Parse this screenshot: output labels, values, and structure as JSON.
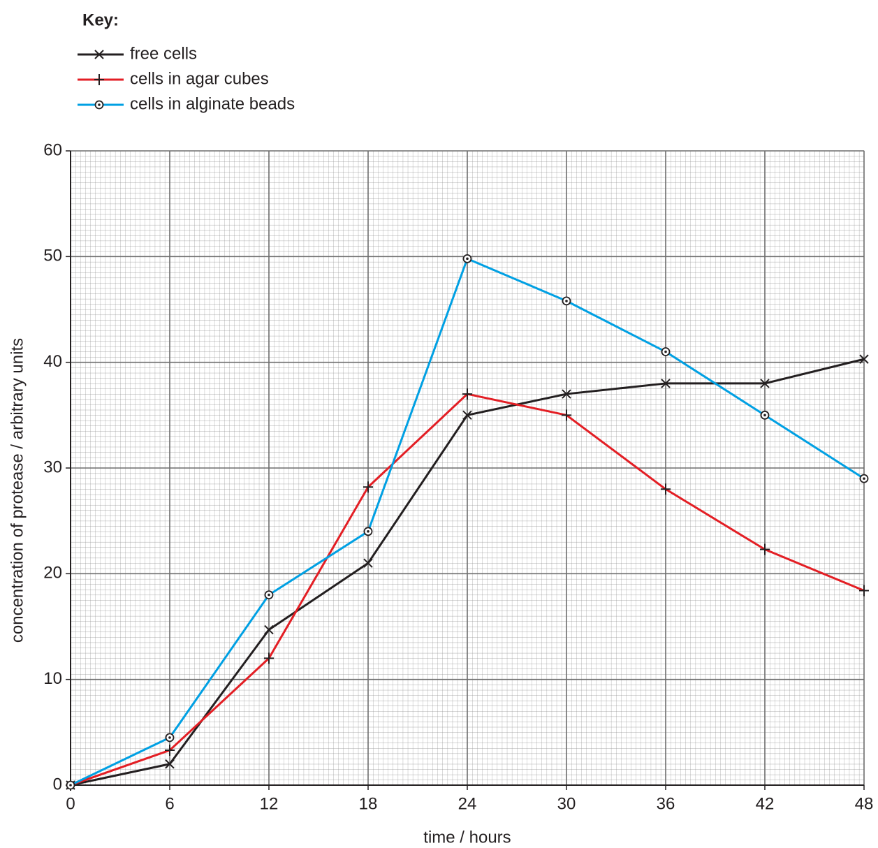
{
  "chart_data": {
    "type": "line",
    "legend_title": "Key:",
    "x_label": "time / hours",
    "y_label": "concentration of protease / arbitrary units",
    "x": [
      0,
      6,
      12,
      18,
      24,
      30,
      36,
      42,
      48
    ],
    "series": [
      {
        "name": "free cells",
        "color": "#231f20",
        "marker": "x",
        "values": [
          0,
          2,
          14.7,
          21,
          35,
          37,
          38,
          38,
          40.3
        ]
      },
      {
        "name": "cells in agar cubes",
        "color": "#e31e24",
        "marker": "plus",
        "values": [
          0,
          3.3,
          12,
          28.2,
          37,
          35,
          28,
          22.3,
          18.4
        ]
      },
      {
        "name": "cells in alginate beads",
        "color": "#00a0e3",
        "marker": "circle-dot",
        "values": [
          0,
          4.5,
          18,
          24,
          49.8,
          45.8,
          41,
          35,
          29
        ]
      }
    ],
    "xlim": [
      0,
      48
    ],
    "xticks": [
      0,
      6,
      12,
      18,
      24,
      30,
      36,
      42,
      48
    ],
    "ylim": [
      0,
      60
    ],
    "yticks": [
      0,
      10,
      20,
      30,
      40,
      50,
      60
    ],
    "grid": true
  }
}
